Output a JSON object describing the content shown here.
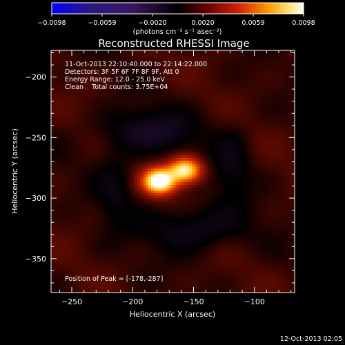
{
  "chart_data": {
    "type": "heatmap",
    "title": "Reconstructed RHESSI Image",
    "colorbar": {
      "ticks": [
        "-0.0098",
        "-0.0059",
        "-0.0020",
        "0.0020",
        "0.0059",
        "0.0098"
      ],
      "unit_label": "(photons cm⁻² s⁻¹ asec⁻²)",
      "range": [
        -0.0098,
        0.0098
      ],
      "colormap": [
        "#0000ff",
        "#2a0c58",
        "#000000",
        "#5a0000",
        "#c81a00",
        "#ff8c00",
        "#ffd24a",
        "#ffffff"
      ]
    },
    "xlabel": "Heliocentric X (arcsec)",
    "ylabel": "Heliocentric Y (arcsec)",
    "xlim": [
      -267,
      -67
    ],
    "ylim": [
      -378,
      -178
    ],
    "xticks": [
      -250,
      -200,
      -150,
      -100
    ],
    "yticks": [
      -200,
      -250,
      -300,
      -350
    ],
    "annotations": [
      "11-Oct-2013 22:10:40.000 to 22:14:22.000",
      "Detectors: 3F 5F 6F 7F 8F 9F, Att 0",
      "Energy Range: 12.0 - 25.0 keV",
      "Clean    Total counts: 3.75E+04"
    ],
    "peak_label": "Position of Peak = [-178,-287]",
    "peak": {
      "x": -178,
      "y": -287,
      "value": 0.0098
    },
    "sources": [
      {
        "kind": "positive",
        "x": -178,
        "y": -286,
        "sx": 9,
        "sy": 7,
        "amp": 0.0105
      },
      {
        "kind": "positive",
        "x": -157,
        "y": -277,
        "sx": 9,
        "sy": 7,
        "amp": 0.0085
      },
      {
        "kind": "negative",
        "x": -186,
        "y": -245,
        "sx": 28,
        "sy": 13,
        "amp": -0.0016
      },
      {
        "kind": "negative",
        "x": -150,
        "y": -325,
        "sx": 28,
        "sy": 13,
        "amp": -0.0016
      },
      {
        "kind": "negative",
        "x": -214,
        "y": -290,
        "sx": 11,
        "sy": 22,
        "amp": -0.0011
      },
      {
        "kind": "negative",
        "x": -118,
        "y": -272,
        "sx": 11,
        "sy": 22,
        "amp": -0.0011
      }
    ],
    "background_level": 0.0011
  },
  "footer": {
    "date": "12-Oct-2013 02:05"
  }
}
